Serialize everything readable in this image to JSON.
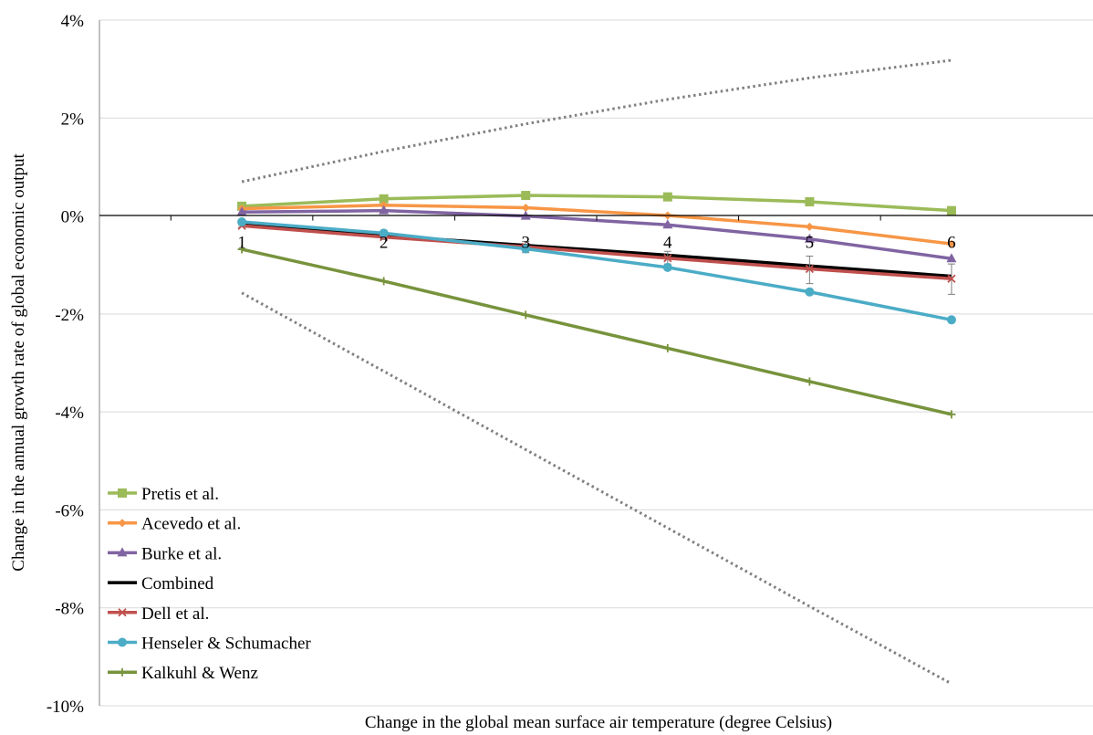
{
  "chart_data": {
    "type": "line",
    "xlabel": "Change in the global mean surface air temperature (degree Celsius)",
    "ylabel": "Change in the annual growth rate of global economic output",
    "x": [
      1,
      2,
      3,
      4,
      5,
      6
    ],
    "x_tick_labels": [
      "1",
      "2",
      "3",
      "4",
      "5",
      "6"
    ],
    "xlim": [
      0.0,
      7.0
    ],
    "ylim": [
      -10,
      4
    ],
    "y_ticks": [
      4,
      2,
      0,
      -2,
      -4,
      -6,
      -8,
      -10
    ],
    "y_tick_labels": [
      "4%",
      "2%",
      "0%",
      "-2%",
      "-4%",
      "-6%",
      "-8%",
      "-10%"
    ],
    "grid": "horizontal",
    "legend_position": "bottom-left",
    "series": [
      {
        "name": "Pretis et al.",
        "color": "#9bbb59",
        "marker": "square",
        "values": [
          0.2,
          0.35,
          0.42,
          0.39,
          0.29,
          0.11
        ]
      },
      {
        "name": "Acevedo et al.",
        "color": "#f79646",
        "marker": "diamond",
        "values": [
          0.15,
          0.22,
          0.17,
          0.01,
          -0.22,
          -0.57
        ]
      },
      {
        "name": "Burke et al.",
        "color": "#8064a2",
        "marker": "triangle",
        "values": [
          0.08,
          0.11,
          0.0,
          -0.18,
          -0.47,
          -0.87
        ]
      },
      {
        "name": "Combined",
        "color": "#000000",
        "marker": "none",
        "values": [
          -0.18,
          -0.4,
          -0.6,
          -0.8,
          -1.02,
          -1.23
        ]
      },
      {
        "name": "Dell et al.",
        "color": "#c0504d",
        "marker": "x",
        "values": [
          -0.2,
          -0.43,
          -0.63,
          -0.86,
          -1.08,
          -1.28
        ],
        "error_bars": [
          [
            -0.18,
            -0.22
          ],
          [
            -0.38,
            -0.48
          ],
          [
            -0.52,
            -0.75
          ],
          [
            -0.72,
            -0.98
          ],
          [
            -0.82,
            -1.38
          ],
          [
            -0.98,
            -1.6
          ]
        ]
      },
      {
        "name": "Henseler & Schumacher",
        "color": "#4bacc6",
        "marker": "circle",
        "values": [
          -0.12,
          -0.35,
          -0.67,
          -1.05,
          -1.55,
          -2.12
        ]
      },
      {
        "name": "Kalkuhl & Wenz",
        "color": "#77933c",
        "marker": "plus",
        "values": [
          -0.68,
          -1.33,
          -2.02,
          -2.7,
          -3.38,
          -4.05
        ]
      }
    ],
    "bounds": {
      "upper": {
        "color": "#808080",
        "style": "dotted",
        "values": [
          0.7,
          1.32,
          1.88,
          2.38,
          2.82,
          3.18
        ]
      },
      "lower": {
        "color": "#808080",
        "style": "dotted",
        "values": [
          -1.57,
          -3.17,
          -4.77,
          -6.37,
          -7.97,
          -9.55
        ]
      }
    }
  }
}
